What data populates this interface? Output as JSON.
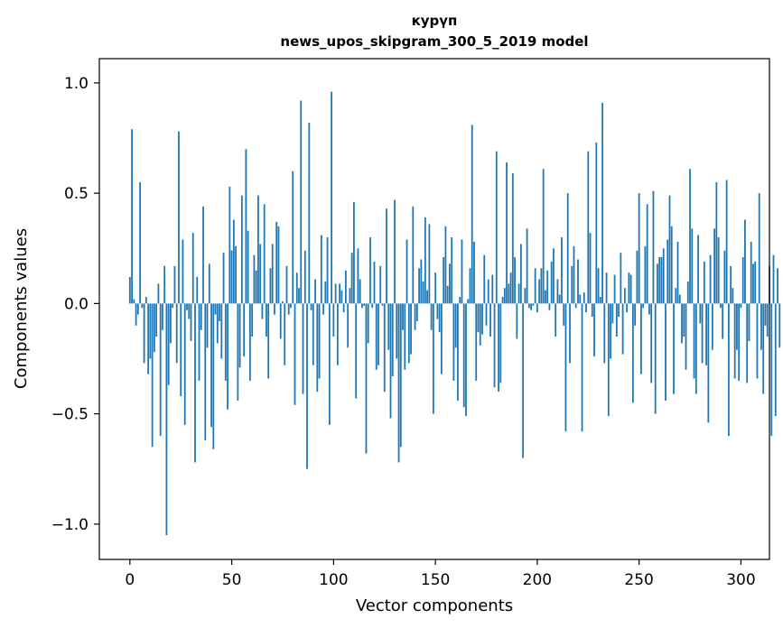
{
  "chart_data": {
    "type": "bar",
    "title_line1": "курүп",
    "title_line2": "news_upos_skipgram_300_5_2019 model",
    "xlabel": "Vector components",
    "ylabel": "Components values",
    "xlim": [
      -15,
      314
    ],
    "ylim": [
      -1.16,
      1.11
    ],
    "x_ticks": [
      0,
      50,
      100,
      150,
      200,
      250,
      300
    ],
    "x_tick_labels": [
      "0",
      "50",
      "100",
      "150",
      "200",
      "250",
      "300"
    ],
    "y_ticks": [
      1.0,
      0.5,
      0.0,
      -0.5,
      -1.0
    ],
    "y_tick_labels": [
      "1.0",
      "0.5",
      "0.0",
      "−0.5",
      "−1.0"
    ],
    "bar_color": "#1f77b4",
    "grid": false,
    "legend": "none",
    "values": [
      0.12,
      0.79,
      0.02,
      -0.1,
      -0.05,
      0.55,
      -0.02,
      -0.27,
      0.03,
      -0.32,
      -0.25,
      -0.65,
      -0.22,
      -0.15,
      0.09,
      -0.6,
      -0.12,
      0.17,
      -1.05,
      -0.37,
      -0.18,
      -0.02,
      0.17,
      -0.27,
      0.78,
      -0.42,
      0.29,
      -0.55,
      -0.03,
      -0.07,
      -0.17,
      0.32,
      -0.72,
      0.12,
      -0.35,
      -0.12,
      0.44,
      -0.62,
      -0.2,
      0.18,
      -0.56,
      -0.66,
      -0.05,
      -0.18,
      -0.08,
      -0.25,
      0.23,
      -0.35,
      -0.48,
      0.53,
      0.24,
      0.38,
      0.26,
      -0.44,
      -0.29,
      0.49,
      -0.24,
      0.7,
      0.33,
      -0.35,
      -0.15,
      0.22,
      0.15,
      0.49,
      0.27,
      -0.07,
      0.45,
      -0.15,
      -0.34,
      0.16,
      0.27,
      -0.05,
      0.37,
      0.35,
      -0.16,
      0.01,
      -0.28,
      0.17,
      -0.05,
      -0.02,
      0.6,
      -0.46,
      0.14,
      0.07,
      0.92,
      -0.41,
      0.24,
      -0.75,
      0.82,
      -0.03,
      -0.28,
      0.11,
      -0.4,
      -0.34,
      0.31,
      -0.05,
      0.1,
      0.3,
      -0.55,
      0.96,
      -0.15,
      0.09,
      -0.28,
      0.09,
      0.06,
      -0.04,
      0.15,
      -0.2,
      0.07,
      0.23,
      0.46,
      -0.43,
      0.25,
      0.11,
      -0.02,
      -0.01,
      -0.68,
      -0.18,
      0.3,
      -0.02,
      0.19,
      -0.3,
      -0.28,
      0.17,
      -0.01,
      -0.4,
      0.43,
      -0.21,
      -0.52,
      -0.33,
      0.47,
      -0.25,
      -0.72,
      -0.65,
      -0.12,
      -0.3,
      0.29,
      -0.27,
      -0.23,
      0.44,
      -0.12,
      -0.08,
      0.16,
      0.2,
      0.1,
      0.39,
      0.06,
      0.36,
      -0.12,
      -0.5,
      0.14,
      -0.07,
      -0.13,
      -0.32,
      0.21,
      0.35,
      0.08,
      0.18,
      0.3,
      -0.35,
      -0.2,
      -0.44,
      0.03,
      0.29,
      -0.47,
      -0.51,
      0.02,
      0.16,
      0.81,
      0.28,
      -0.35,
      -0.13,
      -0.19,
      -0.14,
      0.22,
      -0.1,
      0.11,
      -0.15,
      0.13,
      -0.38,
      0.69,
      -0.4,
      -0.36,
      0.03,
      0.07,
      0.64,
      0.09,
      0.14,
      0.59,
      0.21,
      -0.16,
      0.09,
      0.27,
      -0.7,
      0.07,
      0.34,
      -0.02,
      -0.03,
      -0.01,
      0.16,
      -0.04,
      0.11,
      0.16,
      0.61,
      0.06,
      0.15,
      -0.03,
      0.19,
      0.25,
      -0.15,
      0.11,
      0.04,
      0.3,
      -0.1,
      -0.58,
      0.5,
      -0.27,
      0.17,
      0.26,
      -0.02,
      0.2,
      0.04,
      -0.58,
      0.05,
      -0.04,
      0.69,
      0.32,
      -0.06,
      -0.24,
      0.73,
      0.16,
      0.03,
      0.91,
      -0.27,
      0.14,
      -0.51,
      -0.25,
      -0.09,
      0.13,
      -0.15,
      -0.06,
      0.23,
      -0.23,
      0.07,
      -0.04,
      0.14,
      0.13,
      -0.45,
      -0.1,
      0.24,
      0.5,
      -0.32,
      -0.02,
      0.26,
      0.45,
      -0.05,
      -0.36,
      0.51,
      -0.5,
      0.18,
      0.21,
      0.21,
      0.25,
      -0.44,
      0.29,
      0.49,
      0.35,
      -0.41,
      0.07,
      0.28,
      0.04,
      -0.18,
      -0.15,
      -0.3,
      0.1,
      0.61,
      0.34,
      -0.34,
      -0.41,
      0.31,
      -0.09,
      -0.27,
      0.19,
      -0.28,
      -0.54,
      0.22,
      -0.21,
      0.34,
      0.55,
      0.3,
      -0.02,
      -0.16,
      0.24,
      0.56,
      -0.6,
      0.17,
      0.07,
      -0.34,
      -0.21,
      -0.35,
      -0.02,
      0.21,
      0.38,
      -0.36,
      -0.17,
      0.28,
      0.18,
      0.19,
      -0.34,
      0.5,
      -0.21,
      -0.41,
      -0.1,
      -0.15,
      0.17,
      -0.6,
      0.22,
      -0.51,
      0.16,
      -0.2
    ]
  }
}
